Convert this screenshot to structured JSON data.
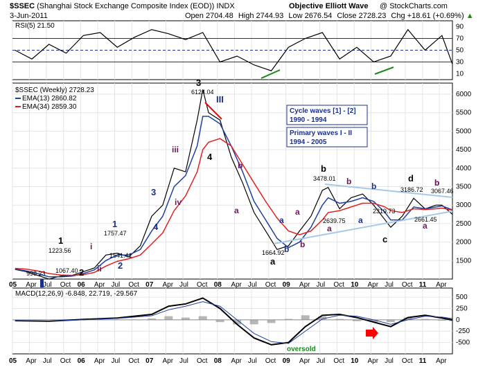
{
  "header": {
    "symbol": "$SSEC",
    "name": "(Shanghai Stock Exchange Composite Index (EOD))",
    "exchange": "INDX",
    "watermark": "Objective Elliott Wave",
    "copyright": "@ StockCharts.com",
    "date": "3-Jun-2011",
    "open_label": "Open",
    "open": "2704.48",
    "high_label": "High",
    "high": "2744.93",
    "low_label": "Low",
    "low": "2676.54",
    "close_label": "Close",
    "close": "2728.23",
    "chg_label": "Chg",
    "chg": "+18.61 (+0.69%)",
    "chg_arrow": "▲"
  },
  "colors": {
    "price": "#000000",
    "ema13": "#1f3fa0",
    "ema34": "#e02020",
    "wave_purple": "#6b1a5e",
    "wave_blue": "#1a2f8c",
    "wave_black": "#000000",
    "trend_blue": "#a6c8e8",
    "histogram": "#999999",
    "rsi_fill": "#000000",
    "accent_green": "#1a8a1a",
    "accent_red": "#ff0000"
  },
  "chart_data": [
    {
      "type": "area",
      "panel": "rsi",
      "title": "RSI(5) 21.50",
      "ylim": [
        0,
        100
      ],
      "y_ticks": [
        10,
        30,
        50,
        70,
        90
      ],
      "levels": [
        30,
        50,
        70
      ],
      "x": [
        "2005-01",
        "2005-04",
        "2005-07",
        "2005-10",
        "2006-01",
        "2006-04",
        "2006-07",
        "2006-10",
        "2007-01",
        "2007-04",
        "2007-07",
        "2007-10",
        "2008-01",
        "2008-04",
        "2008-07",
        "2008-10",
        "2009-01",
        "2009-04",
        "2009-07",
        "2009-10",
        "2010-01",
        "2010-04",
        "2010-07",
        "2010-10",
        "2011-01",
        "2011-04",
        "2011-06"
      ],
      "values": [
        50,
        35,
        60,
        45,
        75,
        80,
        55,
        72,
        85,
        78,
        68,
        80,
        30,
        40,
        25,
        15,
        55,
        70,
        80,
        35,
        55,
        30,
        40,
        85,
        50,
        75,
        22
      ]
    },
    {
      "type": "line",
      "panel": "price",
      "title": "$SSEC (Weekly) 2728.23",
      "ylim": [
        1000,
        6300
      ],
      "y_ticks": [
        1500,
        2000,
        2500,
        3000,
        3500,
        4000,
        4500,
        5000,
        5500,
        6000
      ],
      "x_ticks": [
        "05",
        "Apr",
        "Jul",
        "Oct",
        "06",
        "Apr",
        "Jul",
        "Oct",
        "07",
        "Apr",
        "Jul",
        "Oct",
        "08",
        "Apr",
        "Jul",
        "Oct",
        "09",
        "Apr",
        "Jul",
        "Oct",
        "10",
        "Apr",
        "Jul",
        "Oct",
        "11",
        "Apr"
      ],
      "x": [
        "2005-01",
        "2005-03",
        "2005-05",
        "2005-07",
        "2005-09",
        "2005-11",
        "2006-01",
        "2006-03",
        "2006-05",
        "2006-07",
        "2006-09",
        "2006-11",
        "2007-01",
        "2007-03",
        "2007-05",
        "2007-07",
        "2007-09",
        "2007-10",
        "2007-11",
        "2008-01",
        "2008-03",
        "2008-05",
        "2008-07",
        "2008-09",
        "2008-11",
        "2009-01",
        "2009-03",
        "2009-05",
        "2009-07",
        "2009-08",
        "2009-10",
        "2009-12",
        "2010-02",
        "2010-04",
        "2010-06",
        "2010-07",
        "2010-09",
        "2010-11",
        "2011-01",
        "2011-03",
        "2011-04",
        "2011-06"
      ],
      "series": [
        {
          "name": "$SSEC",
          "values": [
            1260,
            1200,
            1100,
            1000,
            1080,
            1100,
            1200,
            1300,
            1650,
            1700,
            1600,
            1900,
            2700,
            3000,
            4000,
            3900,
            5300,
            6124,
            5500,
            5300,
            4300,
            3600,
            2800,
            2300,
            1800,
            1900,
            2300,
            2700,
            3400,
            3478,
            2900,
            3200,
            3300,
            3000,
            2600,
            2400,
            2700,
            3186,
            2900,
            3000,
            3000,
            2728
          ]
        },
        {
          "name": "EMA(13) 2860.82",
          "values": [
            1270,
            1220,
            1150,
            1060,
            1060,
            1080,
            1150,
            1250,
            1500,
            1650,
            1650,
            1800,
            2300,
            2700,
            3500,
            3800,
            4600,
            5400,
            5400,
            5200,
            4600,
            3900,
            3100,
            2600,
            2100,
            1850,
            2000,
            2400,
            3000,
            3200,
            3050,
            3100,
            3200,
            3100,
            2800,
            2600,
            2600,
            2950,
            2900,
            2950,
            2980,
            2860
          ]
        },
        {
          "name": "EMA(34) 2859.30",
          "values": [
            1290,
            1270,
            1220,
            1150,
            1110,
            1100,
            1120,
            1180,
            1350,
            1480,
            1550,
            1650,
            1950,
            2250,
            2850,
            3250,
            3900,
            4500,
            4700,
            4800,
            4600,
            4100,
            3600,
            3100,
            2650,
            2300,
            2200,
            2300,
            2600,
            2800,
            2850,
            2950,
            3050,
            3050,
            2950,
            2850,
            2800,
            2900,
            2880,
            2900,
            2920,
            2859
          ]
        }
      ],
      "price_labels": [
        "1223.56",
        "998.23",
        "1067.40",
        "1541.41",
        "1757.47",
        "6124.04",
        "1664.92",
        "3478.01",
        "2639.75",
        "2319.73",
        "3186.72",
        "2661.45",
        "3067.46"
      ],
      "info_boxes": [
        {
          "line1": "Cycle waves [1] - [2]",
          "line2": "1990 - 1994"
        },
        {
          "line1": "Primary waves I - II",
          "line2": "1994 - 2005"
        }
      ],
      "wave_labels": [
        "1",
        "2",
        "i",
        "ii",
        "1",
        "2",
        "iii",
        "iv",
        "3",
        "4",
        "3",
        "4",
        "III",
        "b",
        "a",
        "a",
        "b",
        "a",
        "b",
        "a",
        "b",
        "a",
        "b",
        "a",
        "b",
        "c",
        "b",
        "d",
        "b",
        "a"
      ]
    },
    {
      "type": "line",
      "panel": "macd",
      "title": "MACD(12,26,9) -6.848, 22.719, -29.567",
      "ylim": [
        -750,
        700
      ],
      "y_ticks": [
        -500,
        -250,
        0,
        250,
        500
      ],
      "x_ticks": [
        "05",
        "Apr",
        "Jul",
        "Oct",
        "06",
        "Apr",
        "Jul",
        "Oct",
        "07",
        "Apr",
        "Jul",
        "Oct",
        "08",
        "Apr",
        "Jul",
        "Oct",
        "09",
        "Apr",
        "Jul",
        "Oct",
        "10",
        "Apr",
        "Jul",
        "Oct",
        "11",
        "Apr"
      ],
      "x": [
        "2005-01",
        "2005-07",
        "2006-01",
        "2006-07",
        "2007-01",
        "2007-04",
        "2007-07",
        "2007-10",
        "2008-01",
        "2008-04",
        "2008-07",
        "2008-10",
        "2009-01",
        "2009-04",
        "2009-07",
        "2009-10",
        "2010-01",
        "2010-04",
        "2010-07",
        "2010-10",
        "2011-01",
        "2011-04",
        "2011-06"
      ],
      "series": [
        {
          "name": "MACD",
          "values": [
            -20,
            -30,
            10,
            40,
            120,
            300,
            350,
            480,
            250,
            -100,
            -400,
            -550,
            -500,
            -150,
            100,
            120,
            50,
            -50,
            -150,
            50,
            100,
            40,
            -7
          ]
        },
        {
          "name": "Signal",
          "values": [
            -15,
            -25,
            0,
            30,
            90,
            220,
            300,
            400,
            300,
            0,
            -300,
            -480,
            -520,
            -250,
            20,
            100,
            80,
            0,
            -100,
            0,
            80,
            60,
            23
          ]
        }
      ],
      "annotation": "oversold"
    }
  ]
}
